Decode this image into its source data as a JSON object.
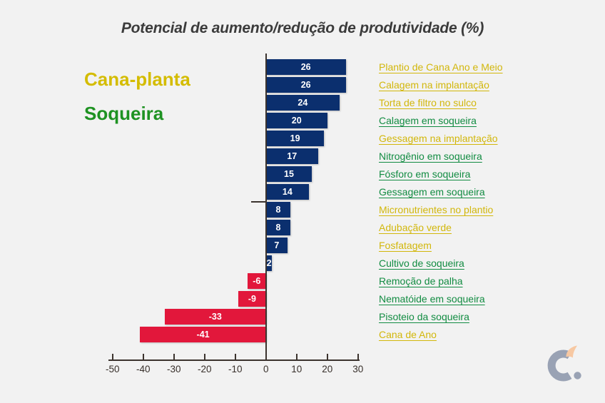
{
  "title": "Potencial de aumento/redução de produtividade (%)",
  "legend": {
    "cana_planta": {
      "label": "Cana-planta",
      "color": "#d4bc00"
    },
    "soqueira": {
      "label": "Soqueira",
      "color": "#1e9222"
    }
  },
  "colors": {
    "background": "#f2f2f2",
    "bar_positive": "#0b2f6e",
    "bar_negative": "#e2173b",
    "label_yellow": "#d2b70b",
    "label_green": "#128c42",
    "axis": "#3b332e",
    "logo_gray": "#99a2b4",
    "logo_peach": "#f7c8a2"
  },
  "chart_data": {
    "type": "bar",
    "orientation": "horizontal",
    "title": "Potencial de aumento/redução de produtividade (%)",
    "xlabel": "",
    "ylabel": "",
    "xlim": [
      -50,
      30
    ],
    "x_ticks": [
      -50,
      -40,
      -30,
      -20,
      -10,
      0,
      10,
      20,
      30
    ],
    "grid": false,
    "legend_position": "left",
    "series_legend": [
      "Cana-planta",
      "Soqueira"
    ],
    "items": [
      {
        "label": "Plantio de Cana Ano e Meio",
        "value": 26,
        "category": "cana-planta"
      },
      {
        "label": "Calagem na implantação",
        "value": 26,
        "category": "cana-planta"
      },
      {
        "label": "Torta de filtro no sulco",
        "value": 24,
        "category": "cana-planta"
      },
      {
        "label": "Calagem em soqueira",
        "value": 20,
        "category": "soqueira"
      },
      {
        "label": "Gessagem na implantação",
        "value": 19,
        "category": "cana-planta"
      },
      {
        "label": "Nitrogênio em soqueira",
        "value": 17,
        "category": "soqueira"
      },
      {
        "label": "Fósforo em soqueira",
        "value": 15,
        "category": "soqueira"
      },
      {
        "label": "Gessagem em soqueira",
        "value": 14,
        "category": "soqueira"
      },
      {
        "label": "Micronutrientes no plantio",
        "value": 8,
        "category": "cana-planta"
      },
      {
        "label": "Adubação verde",
        "value": 8,
        "category": "cana-planta"
      },
      {
        "label": "Fosfatagem",
        "value": 7,
        "category": "cana-planta"
      },
      {
        "label": "Cultivo de soqueira",
        "value": 2,
        "category": "soqueira"
      },
      {
        "label": "Remoção de palha",
        "value": -6,
        "category": "soqueira"
      },
      {
        "label": "Nematóide em soqueira",
        "value": -9,
        "category": "soqueira"
      },
      {
        "label": "Pisoteio da soqueira",
        "value": -33,
        "category": "soqueira"
      },
      {
        "label": "Cana de Ano",
        "value": -41,
        "category": "cana-planta"
      }
    ]
  }
}
